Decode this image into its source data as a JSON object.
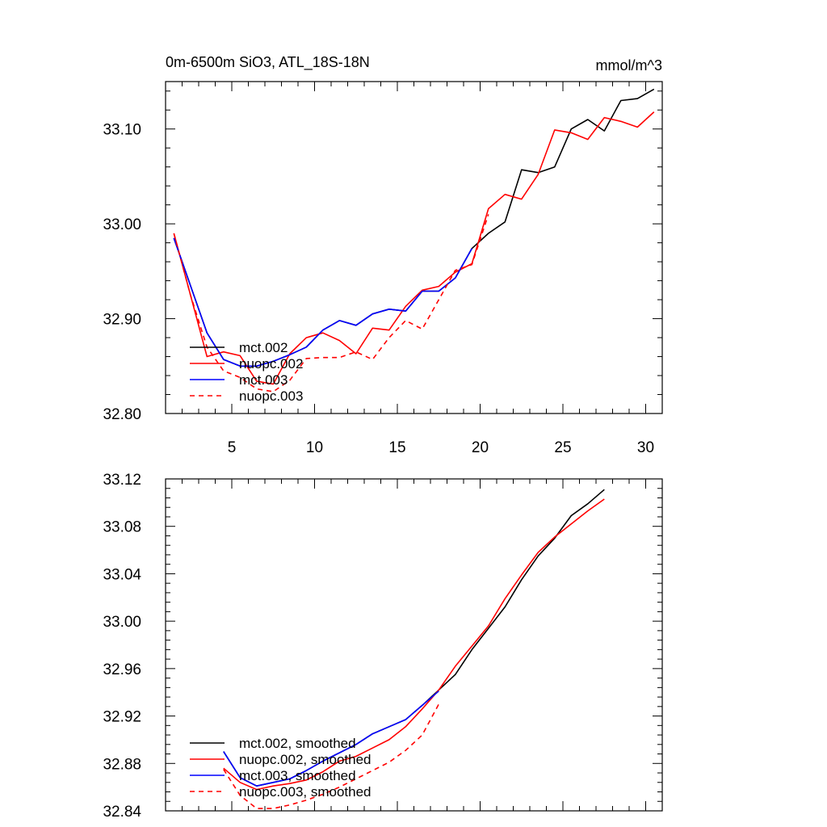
{
  "chart_data": [
    {
      "type": "line",
      "title": "0m-6500m SiO3, ATL_18S-18N",
      "units": "mmol/m^3",
      "xlim": [
        1,
        31
      ],
      "ylim": [
        32.8,
        33.15
      ],
      "x_ticks": [
        5,
        10,
        15,
        20,
        25,
        30
      ],
      "x_tick_labels": [
        "5",
        "10",
        "15",
        "20",
        "25",
        "30"
      ],
      "y_ticks": [
        32.8,
        32.9,
        33.0,
        33.1
      ],
      "y_tick_labels": [
        "32.80",
        "32.90",
        "33.00",
        "33.10"
      ],
      "legend_position": "bottom-left",
      "series": [
        {
          "name": "mct.002",
          "color": "#000000",
          "dash": "solid",
          "x": [
            1.5,
            2.5,
            3.5,
            4.5,
            5.5,
            6.5,
            7.5,
            8.5,
            9.5,
            10.5,
            11.5,
            12.5,
            13.5,
            14.5,
            15.5,
            16.5,
            17.5,
            18.5,
            19.5,
            20.5,
            21.5,
            22.5,
            23.5,
            24.5,
            25.5,
            26.5,
            27.5,
            28.5,
            29.5,
            30.5
          ],
          "values": [
            32.985,
            32.935,
            32.885,
            32.857,
            32.85,
            32.85,
            32.855,
            32.862,
            32.87,
            32.888,
            32.898,
            32.893,
            32.905,
            32.91,
            32.908,
            32.929,
            32.929,
            32.943,
            32.974,
            32.99,
            33.002,
            33.057,
            33.054,
            33.06,
            33.1,
            33.11,
            33.098,
            33.13,
            33.132,
            33.142
          ]
        },
        {
          "name": "nuopc.002",
          "color": "#ff0000",
          "dash": "solid",
          "x": [
            1.5,
            2.5,
            3.5,
            4.5,
            5.5,
            6.5,
            7.5,
            8.5,
            9.5,
            10.5,
            11.5,
            12.5,
            13.5,
            14.5,
            15.5,
            16.5,
            17.5,
            18.5,
            19.5,
            20.5,
            21.5,
            22.5,
            23.5,
            24.5,
            25.5,
            26.5,
            27.5,
            28.5,
            29.5,
            30.5
          ],
          "values": [
            32.99,
            32.925,
            32.86,
            32.865,
            32.861,
            32.834,
            32.831,
            32.863,
            32.88,
            32.885,
            32.877,
            32.863,
            32.89,
            32.888,
            32.913,
            32.93,
            32.934,
            32.949,
            32.958,
            33.016,
            33.031,
            33.026,
            33.052,
            33.099,
            33.096,
            33.089,
            33.112,
            33.108,
            33.102,
            33.118
          ]
        },
        {
          "name": "mct.003",
          "color": "#0000ff",
          "dash": "solid",
          "x": [
            1.5,
            2.5,
            3.5,
            4.5,
            5.5,
            6.5,
            7.5,
            8.5,
            9.5,
            10.5,
            11.5,
            12.5,
            13.5,
            14.5,
            15.5,
            16.5,
            17.5,
            18.5,
            19.5
          ],
          "values": [
            32.985,
            32.935,
            32.885,
            32.857,
            32.85,
            32.85,
            32.855,
            32.862,
            32.87,
            32.888,
            32.898,
            32.893,
            32.905,
            32.91,
            32.908,
            32.929,
            32.929,
            32.943,
            32.974
          ]
        },
        {
          "name": "nuopc.003",
          "color": "#ff0000",
          "dash": "dashed",
          "x": [
            1.5,
            2.5,
            3.5,
            4.5,
            5.5,
            6.5,
            7.5,
            8.5,
            9.5,
            10.5,
            11.5,
            12.5,
            13.5,
            14.5,
            15.5,
            16.5,
            17.5,
            18.5,
            19.5,
            20.5
          ],
          "values": [
            32.99,
            32.925,
            32.87,
            32.845,
            32.838,
            32.826,
            32.823,
            32.835,
            32.858,
            32.859,
            32.859,
            32.865,
            32.857,
            32.88,
            32.898,
            32.889,
            32.92,
            32.951,
            32.957,
            33.01
          ]
        }
      ]
    },
    {
      "type": "line",
      "title": "",
      "xlim": [
        1,
        31
      ],
      "ylim": [
        32.84,
        33.12
      ],
      "y_ticks": [
        32.84,
        32.88,
        32.92,
        32.96,
        33.0,
        33.04,
        33.08,
        33.12
      ],
      "y_tick_labels": [
        "32.84",
        "32.88",
        "32.92",
        "32.96",
        "33.00",
        "33.04",
        "33.08",
        "33.12"
      ],
      "legend_position": "bottom-left",
      "series": [
        {
          "name": "mct.002, smoothed",
          "color": "#000000",
          "dash": "solid",
          "x": [
            4.5,
            5.5,
            6.5,
            7.5,
            8.5,
            9.5,
            10.5,
            11.5,
            12.5,
            13.5,
            14.5,
            15.5,
            16.5,
            17.5,
            18.5,
            19.5,
            20.5,
            21.5,
            22.5,
            23.5,
            24.5,
            25.5,
            26.5,
            27.5
          ],
          "values": [
            32.89,
            32.868,
            32.861,
            32.864,
            32.867,
            32.874,
            32.882,
            32.889,
            32.896,
            32.905,
            32.911,
            32.917,
            32.929,
            32.942,
            32.955,
            32.976,
            32.994,
            33.012,
            33.035,
            33.055,
            33.07,
            33.089,
            33.099,
            33.111
          ]
        },
        {
          "name": "nuopc.002, smoothed",
          "color": "#ff0000",
          "dash": "solid",
          "x": [
            4.5,
            5.5,
            6.5,
            7.5,
            8.5,
            9.5,
            10.5,
            11.5,
            12.5,
            13.5,
            14.5,
            15.5,
            16.5,
            17.5,
            18.5,
            19.5,
            20.5,
            21.5,
            22.5,
            23.5,
            24.5,
            25.5,
            26.5,
            27.5
          ],
          "values": [
            32.876,
            32.864,
            32.858,
            32.861,
            32.863,
            32.866,
            32.873,
            32.882,
            32.886,
            32.893,
            32.9,
            32.911,
            32.926,
            32.942,
            32.962,
            32.979,
            32.996,
            33.019,
            33.039,
            33.058,
            33.071,
            33.082,
            33.093,
            33.103
          ]
        },
        {
          "name": "mct.003, smoothed",
          "color": "#0000ff",
          "dash": "solid",
          "x": [
            4.5,
            5.5,
            6.5,
            7.5,
            8.5,
            9.5,
            10.5,
            11.5,
            12.5,
            13.5,
            14.5,
            15.5,
            16.5,
            17.5
          ],
          "values": [
            32.89,
            32.868,
            32.861,
            32.864,
            32.867,
            32.874,
            32.882,
            32.889,
            32.896,
            32.905,
            32.911,
            32.917,
            32.929,
            32.941
          ]
        },
        {
          "name": "nuopc.003, smoothed",
          "color": "#ff0000",
          "dash": "dashed",
          "x": [
            4.5,
            5.5,
            6.5,
            7.5,
            8.5,
            9.5,
            10.5,
            11.5,
            12.5,
            13.5,
            14.5,
            15.5,
            16.5,
            17.5
          ],
          "values": [
            32.875,
            32.853,
            32.842,
            32.842,
            32.845,
            32.849,
            32.854,
            32.86,
            32.867,
            32.874,
            32.881,
            32.891,
            32.904,
            32.93
          ]
        }
      ]
    }
  ]
}
